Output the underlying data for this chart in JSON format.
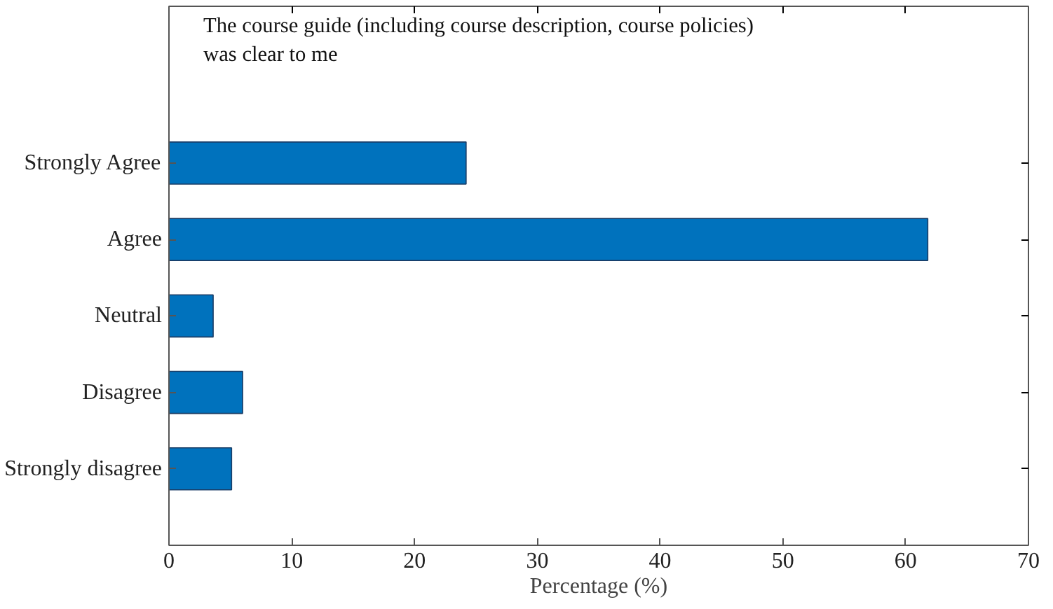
{
  "chart_data": {
    "type": "bar",
    "orientation": "horizontal",
    "categories": [
      "Strongly Agree",
      "Agree",
      "Neutral",
      "Disagree",
      "Strongly disagree"
    ],
    "values": [
      24.2,
      61.8,
      3.6,
      6.0,
      5.1
    ],
    "color": "#0072bd",
    "xlabel": "Percentage (%)",
    "xlim": [
      0,
      70
    ],
    "xticks": [
      0,
      10,
      20,
      30,
      40,
      50,
      60,
      70
    ],
    "annotations": [
      "The course guide (including course description, course policies)\nwas clear to me"
    ],
    "grid": false
  }
}
